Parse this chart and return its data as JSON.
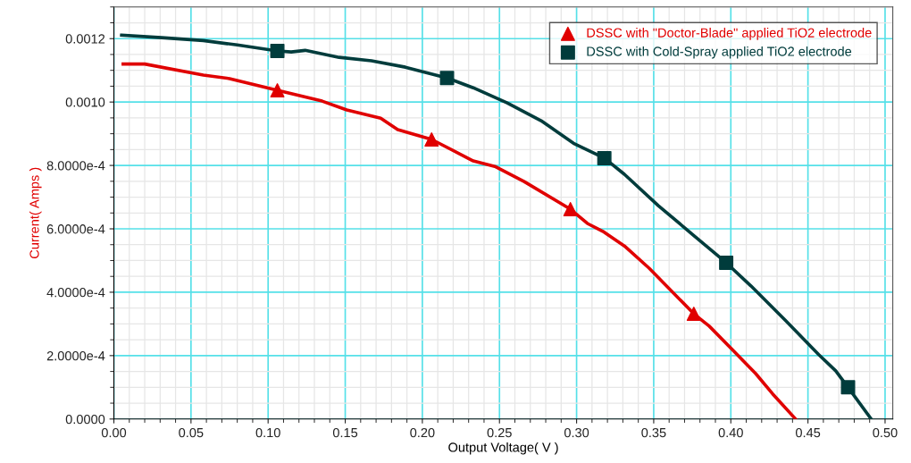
{
  "chart_data": {
    "type": "line",
    "xlabel": "Output Voltage( V )",
    "ylabel": "Current( Amps )",
    "xlim": [
      0,
      0.505
    ],
    "ylim": [
      0,
      0.0013
    ],
    "xticks": [
      {
        "value": 0,
        "label": "0.00"
      },
      {
        "value": 0.05,
        "label": "0.05"
      },
      {
        "value": 0.1,
        "label": "0.10"
      },
      {
        "value": 0.15,
        "label": "0.15"
      },
      {
        "value": 0.2,
        "label": "0.20"
      },
      {
        "value": 0.25,
        "label": "0.25"
      },
      {
        "value": 0.3,
        "label": "0.30"
      },
      {
        "value": 0.35,
        "label": "0.35"
      },
      {
        "value": 0.4,
        "label": "0.40"
      },
      {
        "value": 0.45,
        "label": "0.45"
      },
      {
        "value": 0.5,
        "label": "0.50"
      }
    ],
    "yticks": [
      {
        "value": 0,
        "label": "0.0000"
      },
      {
        "value": 0.0002,
        "label": "2.0000e-4"
      },
      {
        "value": 0.0004,
        "label": "4.0000e-4"
      },
      {
        "value": 0.0006,
        "label": "6.0000e-4"
      },
      {
        "value": 0.0008,
        "label": "8.0000e-4"
      },
      {
        "value": 0.001,
        "label": "0.0010"
      },
      {
        "value": 0.0012,
        "label": "0.0012"
      }
    ],
    "grid": true,
    "legend": "top right",
    "series": [
      {
        "color": "#e00000",
        "x": [
          0.006,
          0.02,
          0.058,
          0.075,
          0.106,
          0.135,
          0.151,
          0.173,
          0.184,
          0.206,
          0.233,
          0.247,
          0.266,
          0.296,
          0.307,
          0.317,
          0.331,
          0.347,
          0.376,
          0.386,
          0.402,
          0.416,
          0.427,
          0.442
        ],
        "values": [
          0.00112,
          0.00112,
          0.001085,
          0.001074,
          0.001037,
          0.001003,
          0.000975,
          0.000949,
          0.000913,
          0.000882,
          0.000814,
          0.000797,
          0.000749,
          0.000662,
          0.000617,
          0.000592,
          0.000546,
          0.000476,
          0.000332,
          0.000293,
          0.000214,
          0.000144,
          8e-05,
          0.0
        ]
      },
      {
        "color": "#003c3c",
        "x": [
          0.005,
          0.031,
          0.058,
          0.08,
          0.106,
          0.115,
          0.124,
          0.146,
          0.167,
          0.189,
          0.216,
          0.233,
          0.255,
          0.277,
          0.298,
          0.318,
          0.331,
          0.353,
          0.375,
          0.397,
          0.413,
          0.435,
          0.457,
          0.468,
          0.476,
          0.491
        ],
        "values": [
          0.001211,
          0.001203,
          0.001194,
          0.00118,
          0.001161,
          0.001158,
          0.001163,
          0.001141,
          0.00113,
          0.00111,
          0.001076,
          0.001045,
          0.000997,
          0.000941,
          0.00087,
          0.000823,
          0.000772,
          0.000673,
          0.000583,
          0.000493,
          0.00042,
          0.000313,
          0.000203,
          0.000152,
          0.0001,
          0.0
        ]
      },
      {
        "type": "scatter",
        "name": "DSSC with \"Doctor-Blade\" applied TiO2 electrode",
        "color": "#e00000",
        "marker": "triangle",
        "x": [
          0.106,
          0.206,
          0.296,
          0.376
        ],
        "values": [
          0.001037,
          0.000882,
          0.000662,
          0.000332
        ]
      },
      {
        "type": "scatter",
        "name": "DSSC with Cold-Spray applied TiO2 electrode",
        "color": "#003c3c",
        "marker": "square",
        "x": [
          0.106,
          0.216,
          0.318,
          0.397,
          0.476
        ],
        "values": [
          0.001161,
          0.001076,
          0.000823,
          0.000493,
          0.0001
        ]
      }
    ]
  }
}
